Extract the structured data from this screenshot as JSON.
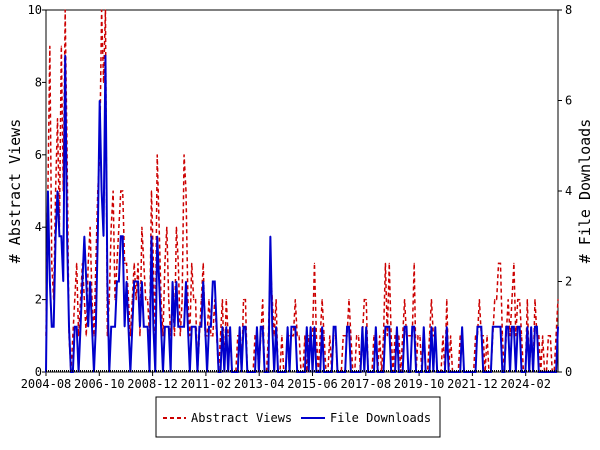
{
  "chart_data": {
    "type": "line",
    "x_tick_labels": [
      "2004-08",
      "2006-10",
      "2008-12",
      "2011-02",
      "2013-04",
      "2015-06",
      "2017-08",
      "2019-10",
      "2021-12",
      "2024-02"
    ],
    "y_left": {
      "label": "# Abstract Views",
      "ylim": [
        0,
        10
      ],
      "ticks": [
        "0",
        "2",
        "4",
        "6",
        "8",
        "10"
      ]
    },
    "y_right": {
      "label": "# File Downloads",
      "ylim": [
        0,
        8
      ],
      "ticks": [
        "0",
        "2",
        "4",
        "6",
        "8"
      ]
    },
    "legend_position": "bottom-center",
    "series": [
      {
        "name": "Abstract Views",
        "axis": "left",
        "color": "#cc0000",
        "style": "dashed",
        "values": [
          1,
          5,
          9,
          3,
          2,
          5,
          7,
          4,
          9,
          5,
          10,
          6,
          1,
          0,
          1,
          2,
          3,
          1,
          2,
          3,
          2,
          1,
          3,
          4,
          2,
          1,
          3,
          5,
          6,
          10,
          8,
          10,
          1,
          2,
          4,
          5,
          2,
          3,
          4,
          5,
          5,
          3,
          3,
          2,
          1,
          2,
          3,
          2,
          3,
          1,
          4,
          3,
          2,
          2,
          1,
          5,
          3,
          1,
          6,
          4,
          2,
          1,
          3,
          4,
          2,
          1,
          2,
          1,
          4,
          3,
          1,
          2,
          6,
          5,
          2,
          1,
          3,
          2,
          2,
          0,
          1,
          2,
          3,
          1,
          1,
          2,
          1,
          1,
          2,
          1,
          0,
          1,
          2,
          0,
          2,
          1,
          1,
          0,
          0,
          0,
          1,
          1,
          0,
          2,
          2,
          0,
          0,
          0,
          0,
          1,
          1,
          0,
          1,
          2,
          0,
          0,
          1,
          3,
          2,
          1,
          2,
          0,
          0,
          1,
          0,
          0,
          1,
          1,
          1,
          1,
          2,
          1,
          1,
          0,
          0,
          1,
          0,
          1,
          1,
          1,
          3,
          1,
          0,
          1,
          2,
          1,
          0,
          0,
          1,
          0,
          1,
          1,
          0,
          0,
          0,
          1,
          1,
          1,
          2,
          1,
          0,
          0,
          1,
          1,
          0,
          1,
          2,
          2,
          0,
          0,
          0,
          1,
          1,
          0,
          1,
          0,
          1,
          3,
          1,
          3,
          1,
          0,
          1,
          1,
          1,
          0,
          1,
          2,
          1,
          1,
          1,
          1,
          3,
          0,
          1,
          1,
          0,
          1,
          0,
          0,
          1,
          2,
          1,
          1,
          0,
          0,
          0,
          1,
          0,
          2,
          0,
          1,
          0,
          0,
          0,
          0,
          1,
          1,
          0,
          0,
          0,
          0,
          0,
          0,
          1,
          1,
          2,
          1,
          1,
          0,
          1,
          0,
          0,
          1,
          2,
          2,
          3,
          3,
          1,
          0,
          1,
          2,
          1,
          2,
          3,
          1,
          2,
          2,
          1,
          0,
          0,
          2,
          0,
          1,
          0,
          2,
          1,
          1,
          0,
          1,
          0,
          0,
          1,
          1,
          0,
          0,
          1,
          2
        ]
      },
      {
        "name": "File Downloads",
        "axis": "right",
        "color": "#0000cc",
        "style": "solid",
        "values": [
          0,
          4,
          2,
          1,
          1,
          3,
          4,
          3,
          3,
          2,
          7,
          3,
          1,
          0,
          0,
          1,
          1,
          0,
          1,
          2,
          3,
          2,
          1,
          2,
          1,
          0,
          1,
          3,
          6,
          4,
          3,
          7,
          2,
          0,
          1,
          1,
          1,
          2,
          2,
          3,
          3,
          1,
          2,
          1,
          0,
          1,
          2,
          2,
          2,
          1,
          2,
          1,
          1,
          1,
          0,
          3,
          1,
          0,
          3,
          2,
          1,
          0,
          1,
          1,
          1,
          0,
          2,
          1,
          2,
          1,
          1,
          1,
          1,
          2,
          1,
          0,
          1,
          1,
          1,
          0,
          1,
          1,
          2,
          1,
          0,
          1,
          1,
          2,
          2,
          1,
          0,
          0,
          1,
          0,
          1,
          0,
          1,
          0,
          0,
          0,
          0,
          1,
          0,
          1,
          1,
          0,
          0,
          0,
          0,
          0,
          1,
          0,
          1,
          1,
          0,
          0,
          0,
          3,
          1,
          0,
          1,
          0,
          0,
          0,
          0,
          0,
          1,
          0,
          1,
          1,
          1,
          0,
          0,
          0,
          0,
          0,
          1,
          0,
          1,
          0,
          1,
          0,
          0,
          0,
          1,
          0,
          0,
          0,
          0,
          0,
          1,
          1,
          0,
          0,
          0,
          0,
          0,
          1,
          1,
          0,
          0,
          0,
          0,
          0,
          0,
          1,
          0,
          1,
          0,
          0,
          0,
          0,
          1,
          0,
          0,
          0,
          0,
          1,
          1,
          1,
          0,
          0,
          0,
          1,
          0,
          0,
          0,
          1,
          1,
          0,
          0,
          1,
          1,
          0,
          0,
          0,
          0,
          1,
          0,
          0,
          0,
          1,
          0,
          1,
          0,
          0,
          0,
          0,
          0,
          1,
          0,
          0,
          0,
          0,
          0,
          0,
          0,
          1,
          0,
          0,
          0,
          0,
          0,
          0,
          0,
          1,
          1,
          1,
          0,
          0,
          0,
          0,
          0,
          1,
          1,
          1,
          1,
          1,
          0,
          0,
          1,
          1,
          0,
          1,
          1,
          0,
          1,
          1,
          0,
          0,
          0,
          1,
          0,
          1,
          0,
          1,
          1,
          0,
          0,
          0,
          0,
          0,
          0,
          0,
          0,
          0,
          0,
          1
        ]
      }
    ]
  }
}
